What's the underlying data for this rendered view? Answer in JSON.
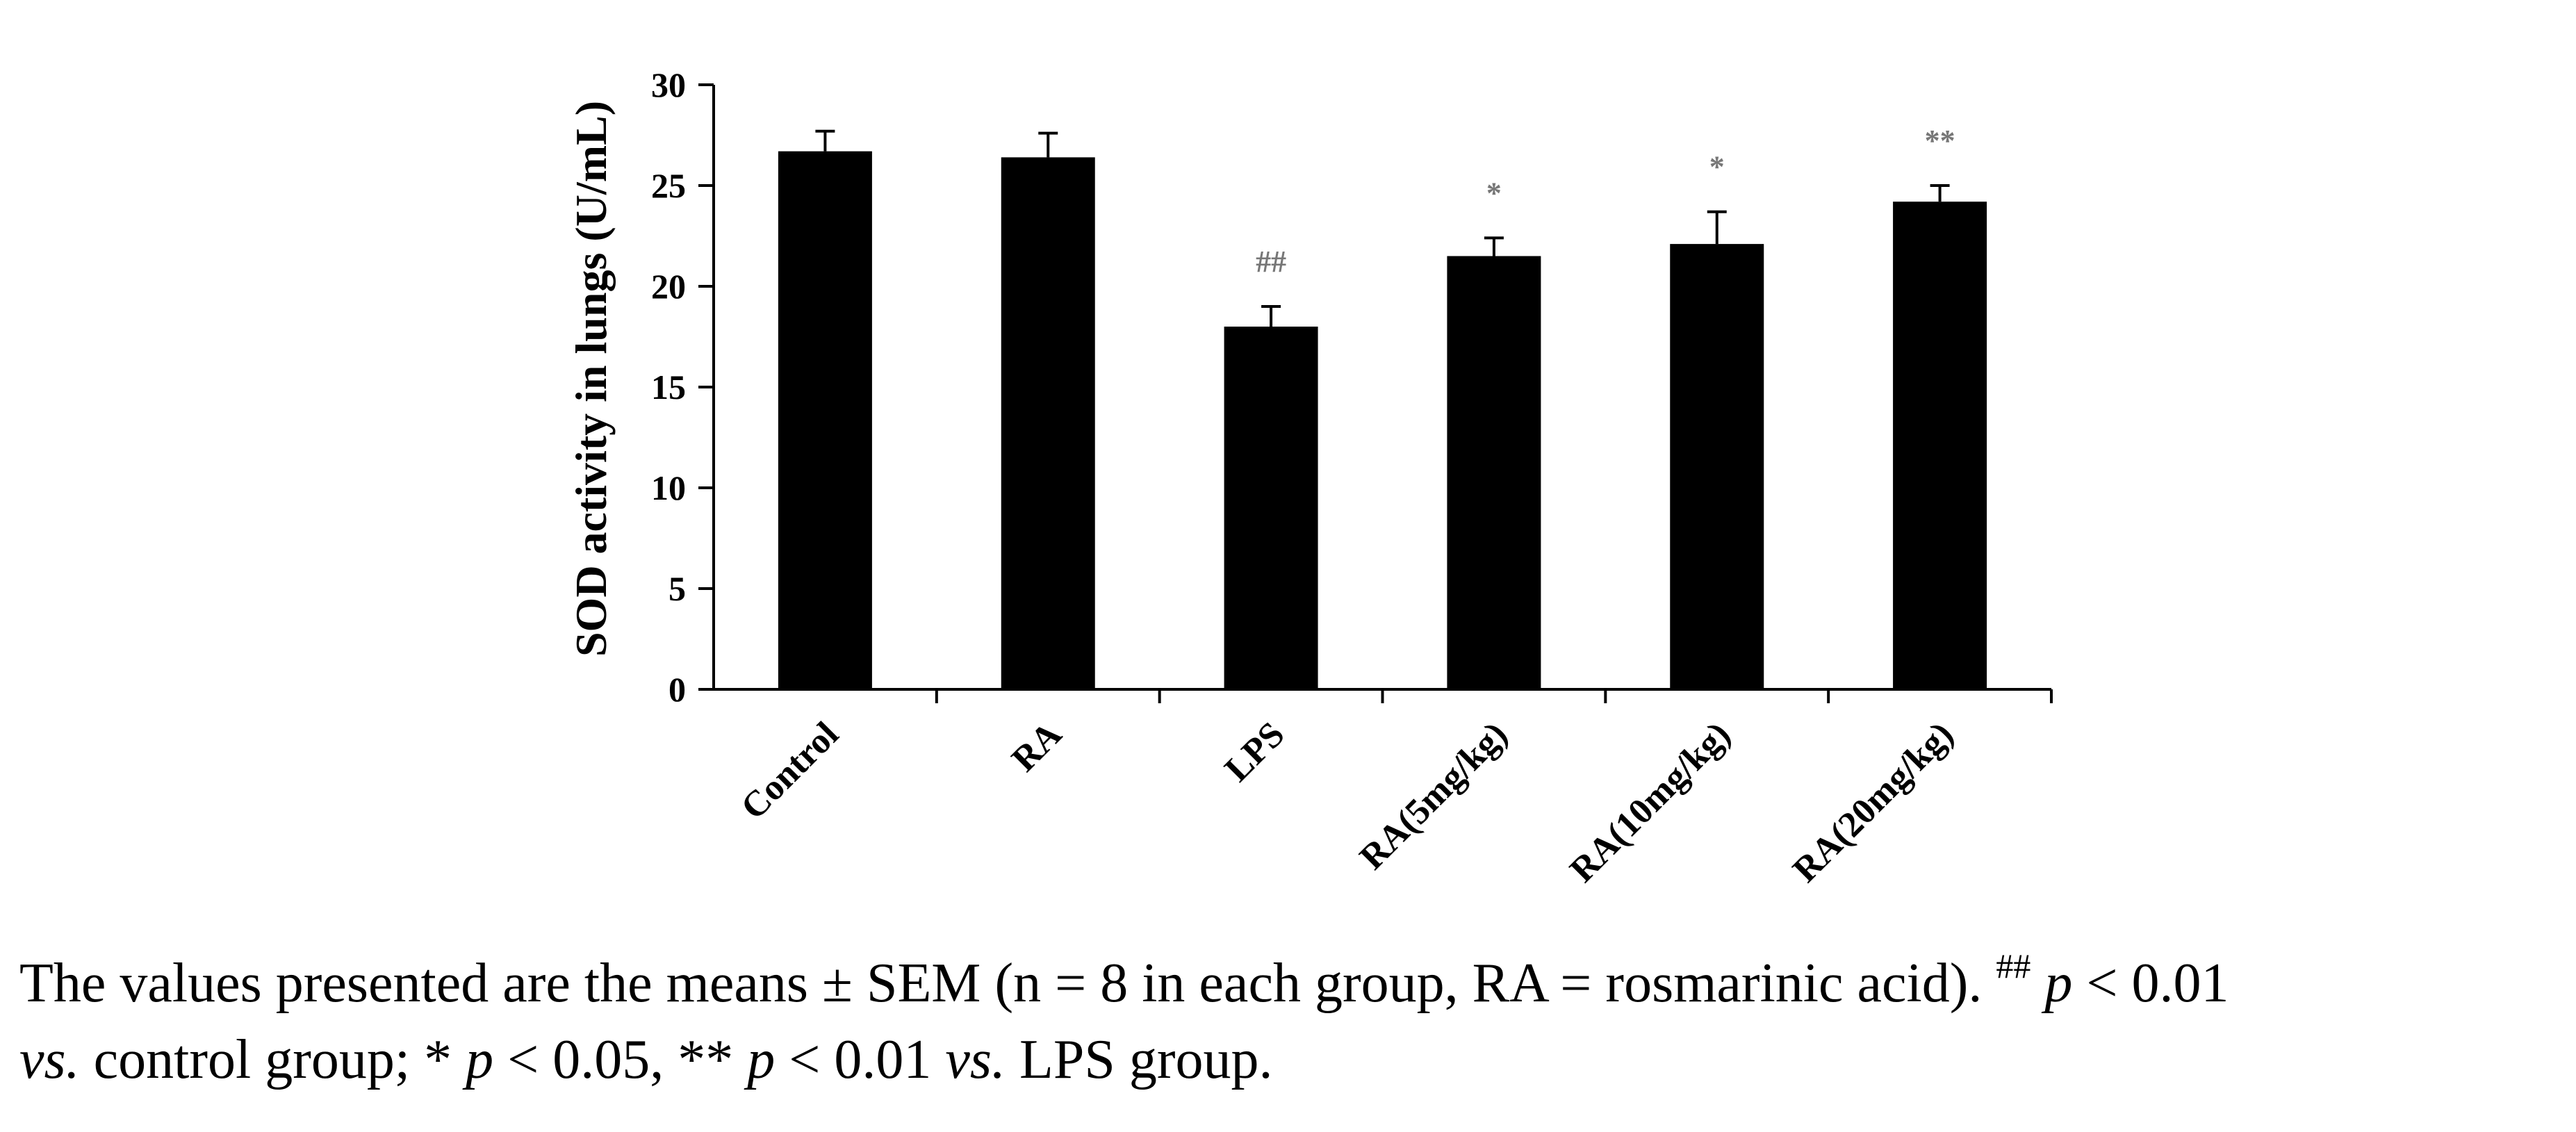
{
  "chart_data": {
    "type": "bar",
    "ylabel": "SOD activity in lungs (U/mL)",
    "xlabel": "",
    "categories": [
      "Control",
      "RA",
      "LPS",
      "RA(5mg/kg)",
      "RA(10mg/kg)",
      "RA(20mg/kg)"
    ],
    "values": [
      26.7,
      26.4,
      18.0,
      21.5,
      22.1,
      24.2
    ],
    "errors": [
      1.0,
      1.2,
      1.0,
      0.9,
      1.6,
      0.8
    ],
    "significance": [
      "",
      "",
      "##",
      "*",
      "*",
      "**"
    ],
    "ylim": [
      0,
      30
    ],
    "yticks": [
      0,
      5,
      10,
      15,
      20,
      25,
      30
    ],
    "bar_color": "#000000",
    "significance_color": "#777777",
    "grid": false,
    "legend": "none"
  },
  "caption": {
    "line1_a": "The values presented are the means ± SEM (n = 8 in each group, RA = rosmarinic acid). ",
    "line1_sup": "##",
    "line1_b": " ",
    "p1": "p",
    "line1_c": " < 0.01",
    "vs1": "vs.",
    "line2_a": " control group; * ",
    "p2": "p",
    "line2_b": " < 0.05, ** ",
    "p3": "p",
    "line2_c": " < 0.01 ",
    "vs2": "vs.",
    "line2_d": " LPS group."
  }
}
